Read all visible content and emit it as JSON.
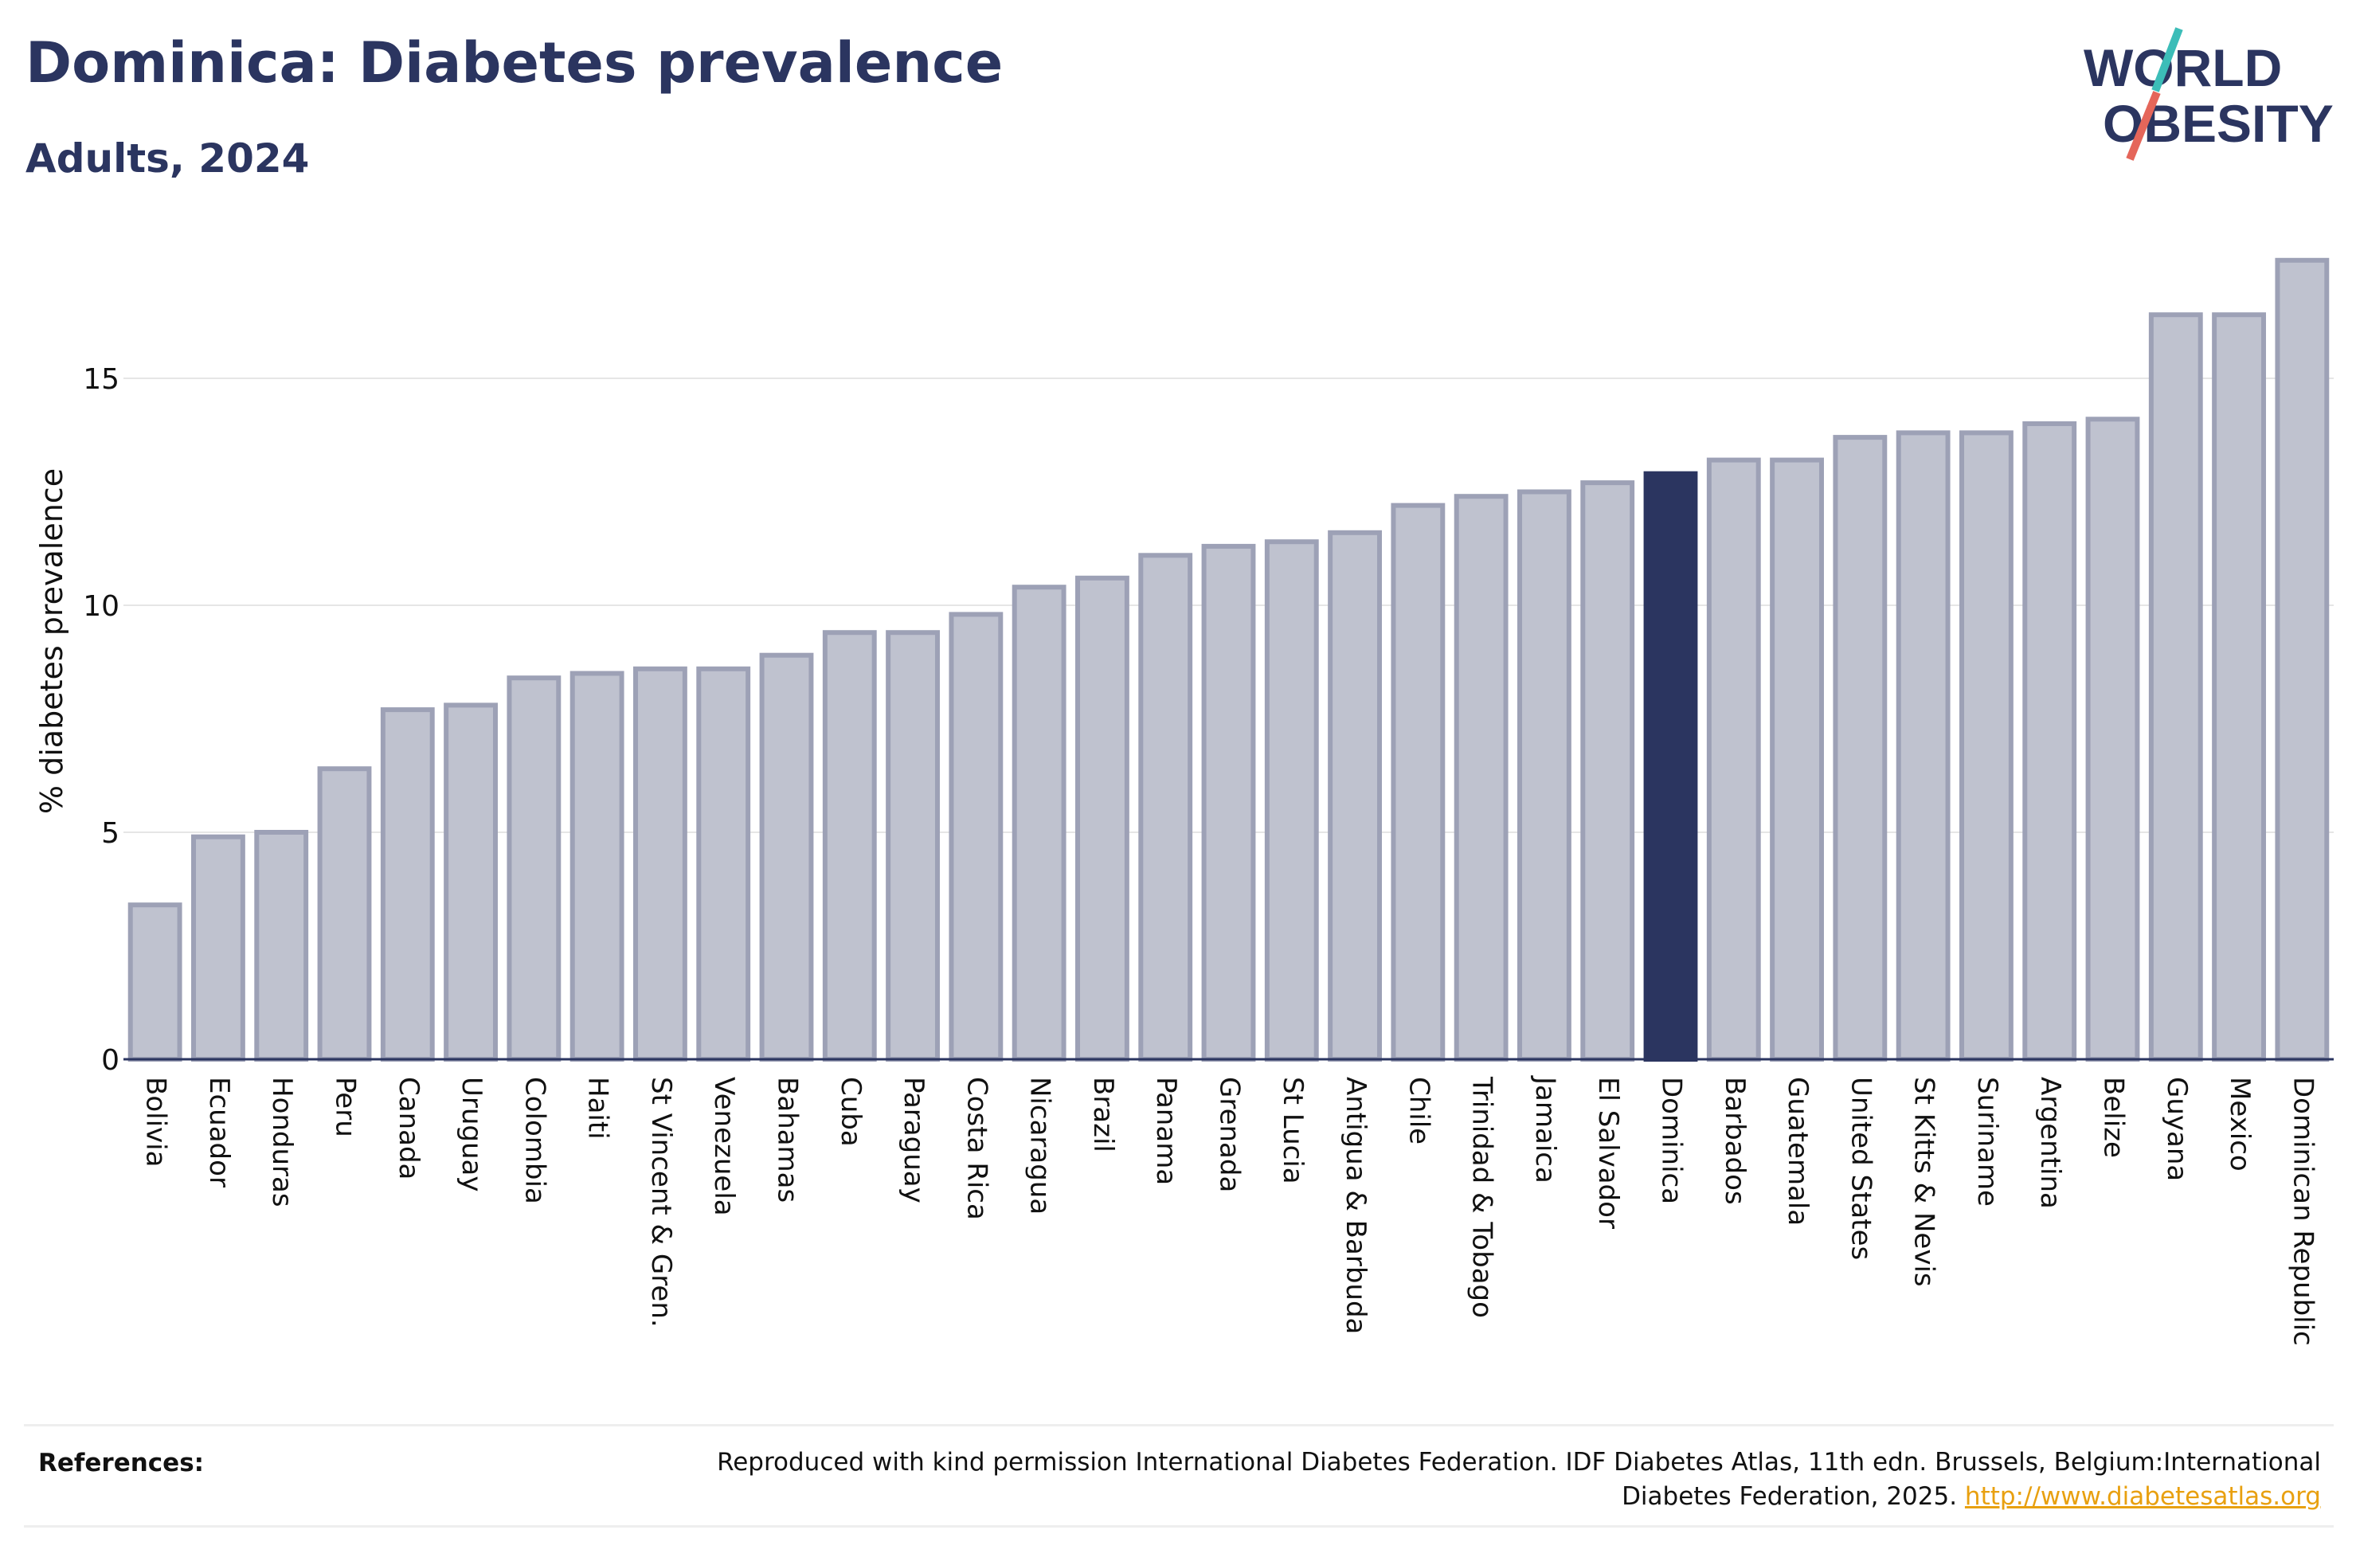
{
  "title": "Dominica: Diabetes prevalence",
  "subtitle": "Adults, 2024",
  "logo": {
    "line1": "WORLD",
    "line2": "OBESITY",
    "accent_colors": [
      "#3cbdb8",
      "#e5665a"
    ]
  },
  "references": {
    "label": "References:",
    "text": "Reproduced with kind permission International Diabetes Federation. IDF Diabetes Atlas, 11th edn. Brussels, Belgium:International Diabetes Federation, 2025.",
    "link": "http://www.diabetesatlas.org"
  },
  "colors": {
    "bar": "#bfc2cf",
    "bar_border": "#9da1b6",
    "highlight": "#2b3560",
    "title": "#2b3560",
    "grid": "#e6e6e6"
  },
  "chart_data": {
    "type": "bar",
    "ylabel": "% diabetes prevalence",
    "ylim": [
      0,
      18
    ],
    "yticks": [
      0,
      5,
      10,
      15
    ],
    "grid": true,
    "highlight": "Dominica",
    "categories": [
      "Bolivia",
      "Ecuador",
      "Honduras",
      "Peru",
      "Canada",
      "Uruguay",
      "Colombia",
      "Haiti",
      "St Vincent & Gren.",
      "Venezuela",
      "Bahamas",
      "Cuba",
      "Paraguay",
      "Costa Rica",
      "Nicaragua",
      "Brazil",
      "Panama",
      "Grenada",
      "St Lucia",
      "Antigua & Barbuda",
      "Chile",
      "Trinidad & Tobago",
      "Jamaica",
      "El Salvador",
      "Dominica",
      "Barbados",
      "Guatemala",
      "United States",
      "St Kitts & Nevis",
      "Suriname",
      "Argentina",
      "Belize",
      "Guyana",
      "Mexico",
      "Dominican Republic"
    ],
    "values": [
      3.4,
      4.9,
      5.0,
      6.4,
      7.7,
      7.8,
      8.4,
      8.5,
      8.6,
      8.6,
      8.9,
      9.4,
      9.4,
      9.8,
      10.4,
      10.6,
      11.1,
      11.3,
      11.4,
      11.6,
      12.2,
      12.4,
      12.5,
      12.7,
      12.9,
      13.2,
      13.2,
      13.7,
      13.8,
      13.8,
      14.0,
      14.1,
      16.4,
      16.4,
      17.6
    ]
  }
}
